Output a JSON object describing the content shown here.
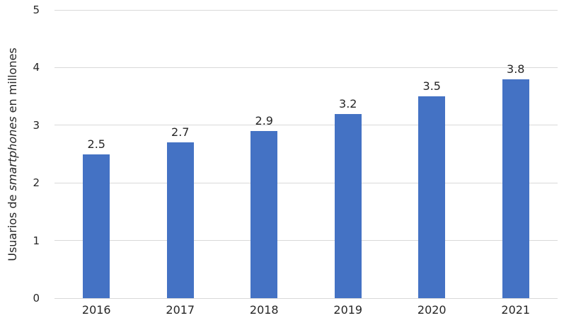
{
  "chart_data": {
    "type": "bar",
    "categories": [
      "2016",
      "2017",
      "2018",
      "2019",
      "2020",
      "2021"
    ],
    "values": [
      2.5,
      2.7,
      2.9,
      3.2,
      3.5,
      3.8
    ],
    "data_labels": [
      "2.5",
      "2.7",
      "2.9",
      "3.2",
      "3.5",
      "3.8"
    ],
    "title": "",
    "xlabel": "",
    "ylabel": "Usuarios de smartphones en millones",
    "ylabel_parts": {
      "prefix": "Usuarios de ",
      "italic": "smartphones",
      "suffix": " en millones"
    },
    "y_ticks": [
      "0",
      "1",
      "2",
      "3",
      "4",
      "5"
    ],
    "ylim": [
      0,
      5
    ],
    "grid": true,
    "legend": "none",
    "colors": {
      "bar": "#4472C4",
      "gridline": "#D9D9D9",
      "axis_line": "#D9D9D9",
      "text": "#262626"
    }
  }
}
